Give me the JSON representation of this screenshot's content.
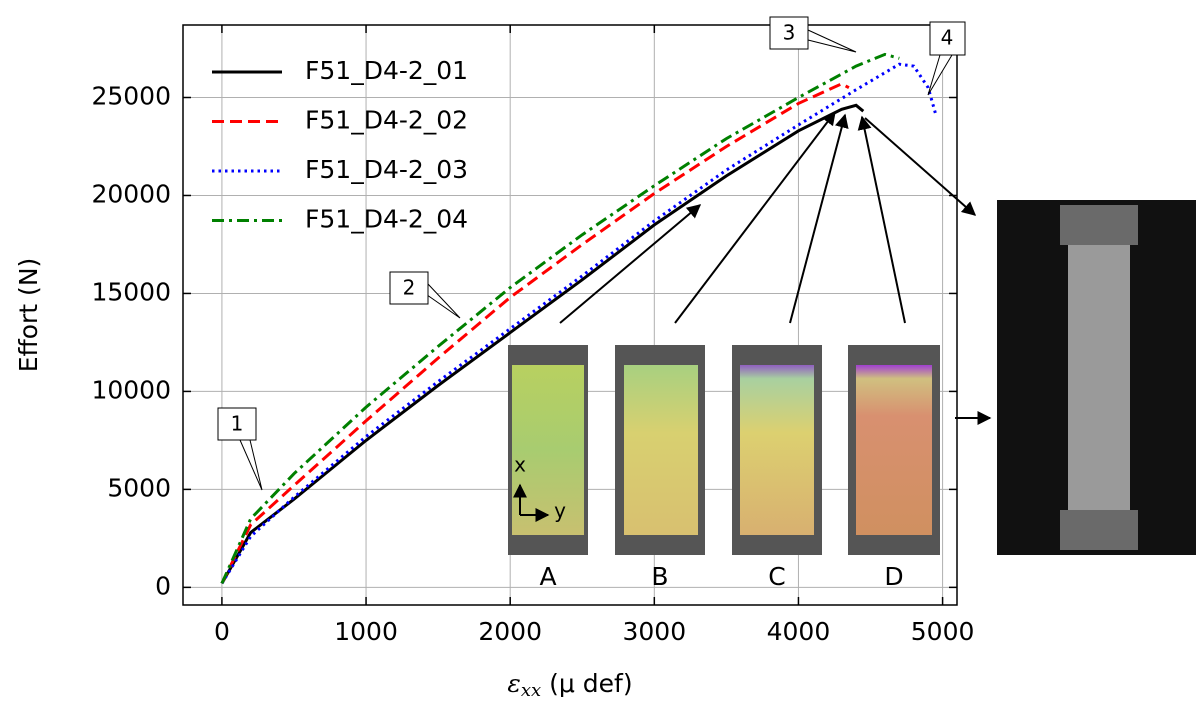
{
  "chart_data": {
    "type": "line",
    "y_label": "Effort (N)",
    "x_label_symbol": "ε",
    "x_label_subscript": "xx",
    "x_label_unit": "(μ def)",
    "xlim": [
      -270,
      5100
    ],
    "xticks": [
      0,
      1000,
      2000,
      3000,
      4000,
      5000
    ],
    "ylim": [
      -900,
      28700
    ],
    "yticks": [
      0,
      5000,
      10000,
      15000,
      20000,
      25000
    ],
    "grid": true,
    "legend": "upper-left",
    "series": [
      {
        "name": "F51_D4-2_01",
        "color": "#000000",
        "linestyle": "solid",
        "x": [
          0,
          100,
          200,
          500,
          1000,
          1500,
          2000,
          2500,
          3000,
          3500,
          4000,
          4300,
          4400,
          4450
        ],
        "values": [
          200,
          1500,
          2800,
          4500,
          7500,
          10300,
          13000,
          15700,
          18500,
          21000,
          23300,
          24400,
          24600,
          24300
        ]
      },
      {
        "name": "F51_D4-2_02",
        "color": "#ff0000",
        "linestyle": "dashed",
        "x": [
          0,
          200,
          500,
          1000,
          1500,
          2000,
          2500,
          3000,
          3500,
          4000,
          4300,
          4350
        ],
        "values": [
          200,
          3200,
          5200,
          8500,
          11700,
          14800,
          17500,
          20100,
          22500,
          24700,
          25700,
          25500
        ]
      },
      {
        "name": "F51_D4-2_03",
        "color": "#0000ff",
        "linestyle": "dotted",
        "x": [
          0,
          200,
          500,
          1000,
          1500,
          2000,
          2500,
          3000,
          3500,
          4000,
          4400,
          4700,
          4800,
          4900,
          4950
        ],
        "values": [
          200,
          2600,
          4600,
          7700,
          10500,
          13200,
          15900,
          18700,
          21300,
          23600,
          25400,
          26700,
          26600,
          25500,
          24200
        ]
      },
      {
        "name": "F51_D4-2_04",
        "color": "#008000",
        "linestyle": "dashdot",
        "x": [
          0,
          200,
          500,
          1000,
          1500,
          2000,
          2500,
          3000,
          3500,
          4000,
          4400,
          4600,
          4700
        ],
        "values": [
          200,
          3500,
          5800,
          9200,
          12300,
          15300,
          18000,
          20500,
          22900,
          25000,
          26600,
          27200,
          27000
        ]
      }
    ],
    "annotations": [
      "1",
      "2",
      "3",
      "4"
    ],
    "inset_labels": [
      "A",
      "B",
      "C",
      "D"
    ],
    "inset_axes": [
      "x",
      "y"
    ]
  }
}
